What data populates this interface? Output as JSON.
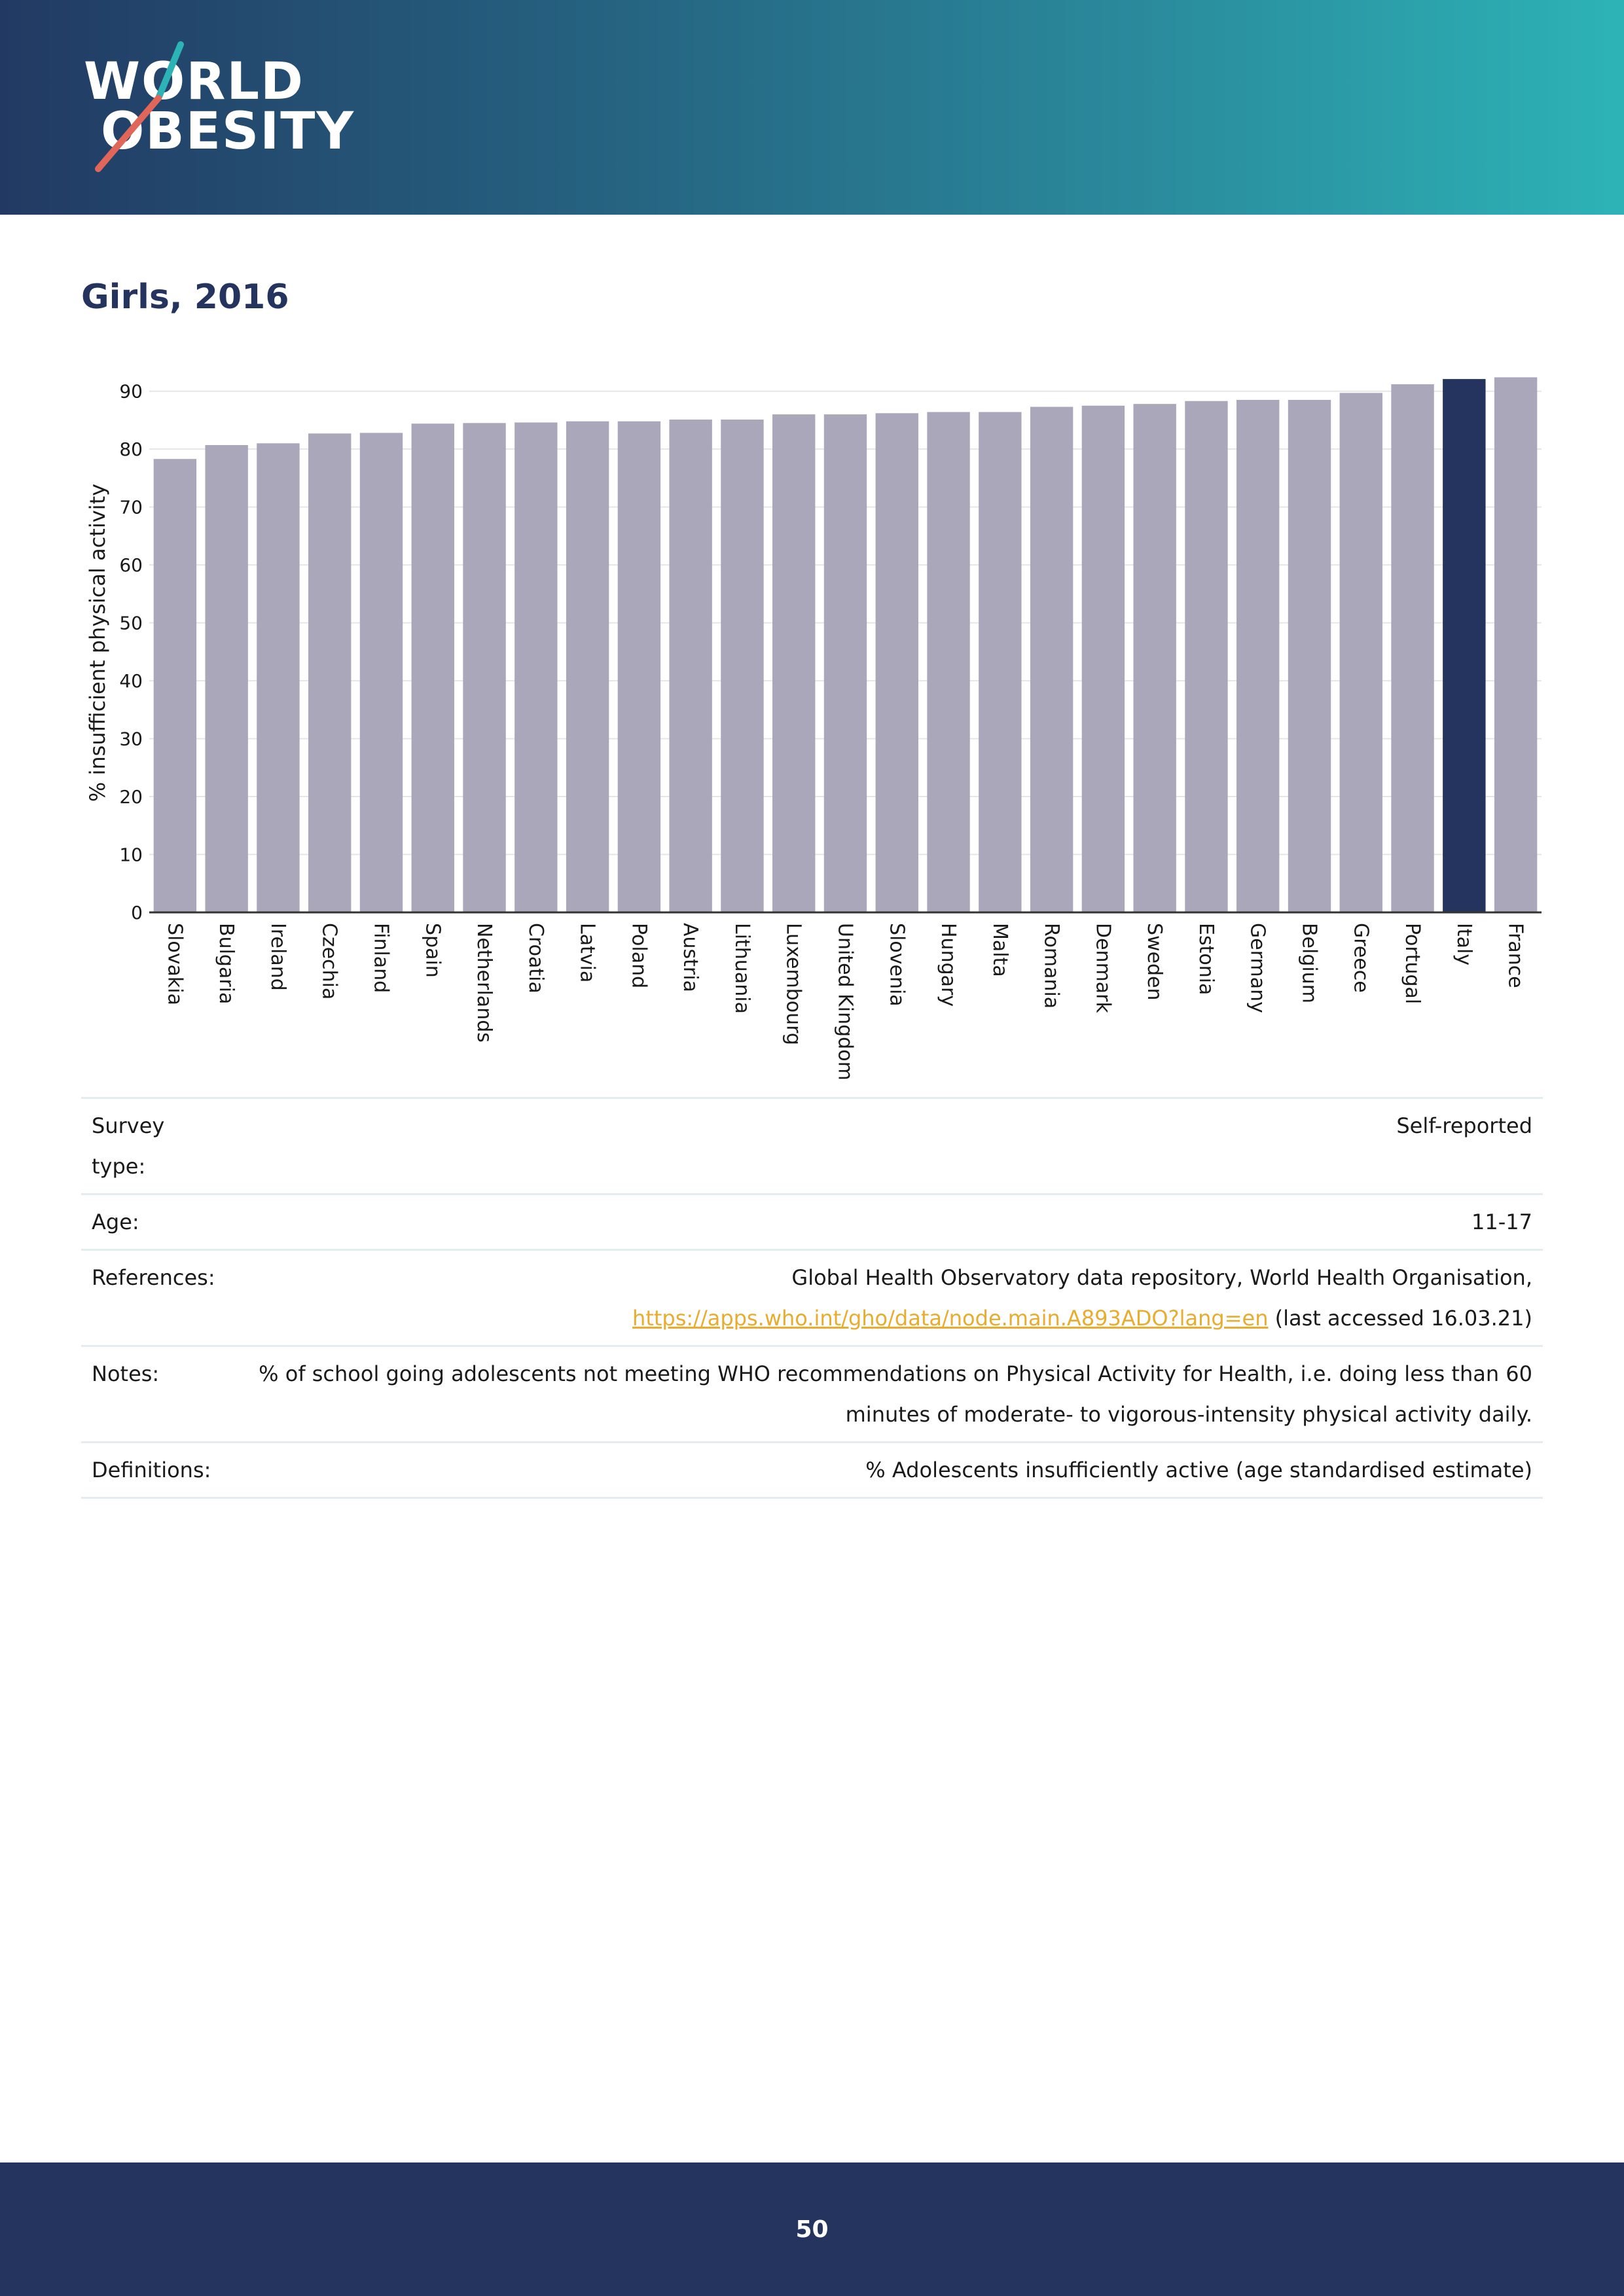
{
  "header": {
    "logo_line1": "WORLD",
    "logo_line2": "OBESITY",
    "gradient_colors": [
      "#223a63",
      "#25607f",
      "#2a8a9c",
      "#2db3b6"
    ]
  },
  "section_title": "Girls, 2016",
  "chart_data": {
    "type": "bar",
    "ylabel": "% insufficient physical activity",
    "ylim": [
      0,
      92
    ],
    "yticks": [
      0,
      10,
      20,
      30,
      40,
      50,
      60,
      70,
      80,
      90
    ],
    "grid": true,
    "categories": [
      "Slovakia",
      "Bulgaria",
      "Ireland",
      "Czechia",
      "Finland",
      "Spain",
      "Netherlands",
      "Croatia",
      "Latvia",
      "Poland",
      "Austria",
      "Lithuania",
      "Luxembourg",
      "United Kingdom",
      "Slovenia",
      "Hungary",
      "Malta",
      "Romania",
      "Denmark",
      "Sweden",
      "Estonia",
      "Germany",
      "Belgium",
      "Greece",
      "Portugal",
      "Italy",
      "France"
    ],
    "values": [
      78.3,
      80.7,
      81.0,
      82.7,
      82.8,
      84.4,
      84.5,
      84.6,
      84.8,
      84.8,
      85.1,
      85.1,
      86.0,
      86.0,
      86.2,
      86.4,
      86.4,
      87.3,
      87.5,
      87.8,
      88.3,
      88.5,
      88.5,
      89.7,
      91.2,
      92.1,
      92.4
    ],
    "highlight": "Italy",
    "colors": {
      "default": "#aba7bb",
      "highlight": "#24345f"
    }
  },
  "info": [
    {
      "label": "Survey type:",
      "value": "Self-reported"
    },
    {
      "label": "Age:",
      "value": "11-17"
    },
    {
      "label": "References:",
      "value": "Global Health Observatory data repository, World Health Organisation,",
      "link": "https://apps.who.int/gho/data/node.main.A893ADO?lang=en",
      "suffix": "(last accessed 16.03.21)"
    },
    {
      "label": "Notes:",
      "value": "% of school going adolescents not meeting WHO recommendations on Physical Activity for Health, i.e. doing less than 60 minutes of moderate- to vigorous-intensity physical activity daily."
    },
    {
      "label": "Definitions:",
      "value": "% Adolescents insufficiently active (age standardised estimate)"
    }
  ],
  "link_color": "#e8ac2e",
  "footer": {
    "page_number": "50"
  }
}
